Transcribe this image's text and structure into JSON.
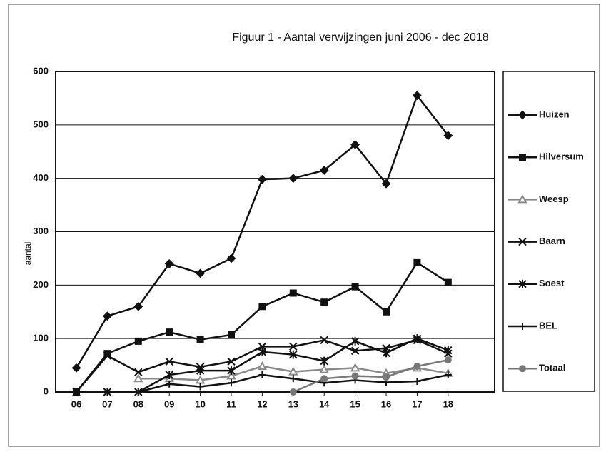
{
  "chart_data": {
    "type": "line",
    "title": "Figuur 1 - Aantal verwijzingen juni 2006 - dec 2018",
    "y_label": "aantal",
    "categories": [
      "06",
      "07",
      "08",
      "09",
      "10",
      "11",
      "12",
      "13",
      "14",
      "15",
      "16",
      "17",
      "18"
    ],
    "series": [
      {
        "name": "Huizen",
        "color": "#111111",
        "marker": "diamond",
        "values": [
          45,
          142,
          160,
          240,
          222,
          250,
          398,
          400,
          415,
          463,
          390,
          555,
          480
        ]
      },
      {
        "name": "Hilversum",
        "color": "#111111",
        "marker": "square",
        "values": [
          0,
          72,
          95,
          112,
          98,
          107,
          160,
          185,
          168,
          197,
          150,
          242,
          205
        ]
      },
      {
        "name": "Weesp",
        "color": "#8a8a8a",
        "marker": "triangle",
        "values": [
          null,
          null,
          25,
          25,
          22,
          30,
          48,
          38,
          42,
          45,
          35,
          45,
          35
        ]
      },
      {
        "name": "Baarn",
        "color": "#111111",
        "marker": "x",
        "values": [
          0,
          68,
          37,
          57,
          47,
          57,
          85,
          85,
          97,
          77,
          82,
          97,
          72
        ]
      },
      {
        "name": "Soest",
        "color": "#111111",
        "marker": "star",
        "values": [
          null,
          0,
          0,
          32,
          40,
          40,
          75,
          70,
          58,
          95,
          73,
          100,
          78
        ]
      },
      {
        "name": "BEL",
        "color": "#111111",
        "marker": "plus",
        "values": [
          null,
          null,
          0,
          15,
          10,
          17,
          32,
          25,
          17,
          22,
          18,
          20,
          32
        ]
      },
      {
        "name": "Totaal",
        "color": "#777777",
        "marker": "circle",
        "values": [
          null,
          null,
          null,
          null,
          null,
          null,
          null,
          0,
          25,
          30,
          28,
          48,
          60
        ]
      }
    ],
    "ylim": [
      0,
      600
    ],
    "yticks": [
      0,
      100,
      200,
      300,
      400,
      500,
      600
    ],
    "grid": true
  }
}
